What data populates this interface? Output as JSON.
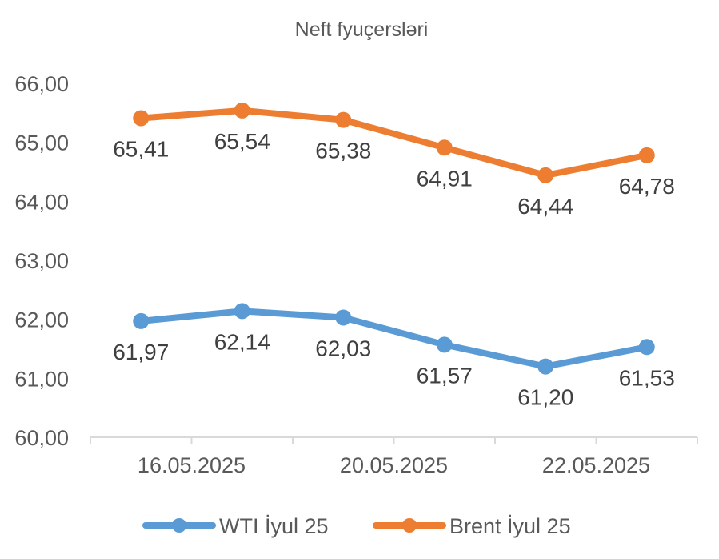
{
  "chart_data": {
    "type": "line",
    "title": "Neft fyuçersləri",
    "x_tick_labels": [
      "16.05.2025",
      "20.05.2025",
      "22.05.2025"
    ],
    "ylim": [
      60,
      66
    ],
    "y_ticks": [
      "60,00",
      "61,00",
      "62,00",
      "63,00",
      "64,00",
      "65,00",
      "66,00"
    ],
    "grid": false,
    "legend_position": "bottom",
    "series": [
      {
        "name": "WTI İyul 25",
        "color": "#5b9bd5",
        "values": [
          61.97,
          62.14,
          62.03,
          61.57,
          61.2,
          61.53
        ],
        "labels": [
          "61,97",
          "62,14",
          "62,03",
          "61,57",
          "61,20",
          "61,53"
        ]
      },
      {
        "name": "Brent İyul 25",
        "color": "#ed7d31",
        "values": [
          65.41,
          65.54,
          65.38,
          64.91,
          64.44,
          64.78
        ],
        "labels": [
          "65,41",
          "65,54",
          "65,38",
          "64,91",
          "64,44",
          "64,78"
        ]
      }
    ]
  }
}
